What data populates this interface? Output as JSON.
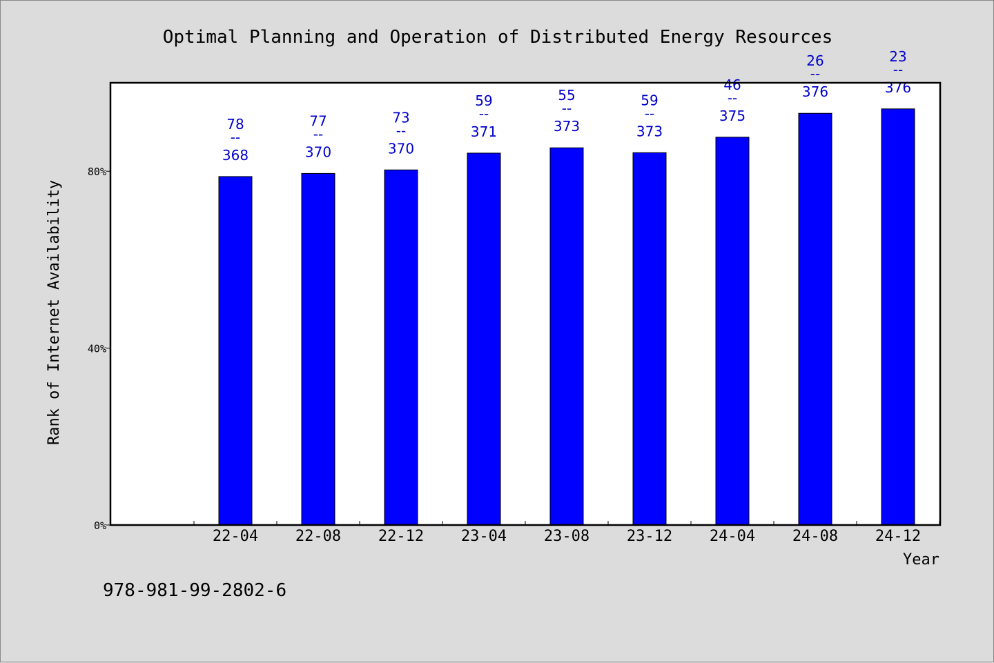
{
  "chart_data": {
    "type": "bar",
    "title": "Optimal Planning and Operation of Distributed Energy Resources",
    "xlabel": "Year",
    "ylabel": "Rank of Internet Availability",
    "categories": [
      "22-04",
      "22-08",
      "22-12",
      "23-04",
      "23-08",
      "23-12",
      "24-04",
      "24-08",
      "24-12"
    ],
    "values": [
      78.8,
      79.5,
      80.3,
      84.1,
      85.3,
      84.2,
      87.7,
      93.1,
      94.1
    ],
    "data_labels": [
      {
        "top": "78",
        "sep": "--",
        "bottom": "368"
      },
      {
        "top": "77",
        "sep": "--",
        "bottom": "370"
      },
      {
        "top": "73",
        "sep": "--",
        "bottom": "370"
      },
      {
        "top": "59",
        "sep": "--",
        "bottom": "371"
      },
      {
        "top": "55",
        "sep": "--",
        "bottom": "373"
      },
      {
        "top": "59",
        "sep": "--",
        "bottom": "373"
      },
      {
        "top": "46",
        "sep": "--",
        "bottom": "375"
      },
      {
        "top": "26",
        "sep": "--",
        "bottom": "376"
      },
      {
        "top": "23",
        "sep": "--",
        "bottom": "376"
      }
    ],
    "yticks": [
      0,
      40,
      80
    ],
    "ytick_labels": [
      "0%",
      "40%",
      "80%"
    ],
    "ylim": [
      0,
      100
    ],
    "grid": false,
    "bar_color": "#0000ff",
    "label_color": "#0000cc",
    "plot_background": "#ffffff",
    "page_background": "#dcdcdc"
  },
  "footer": {
    "isbn": "978-981-99-2802-6"
  }
}
